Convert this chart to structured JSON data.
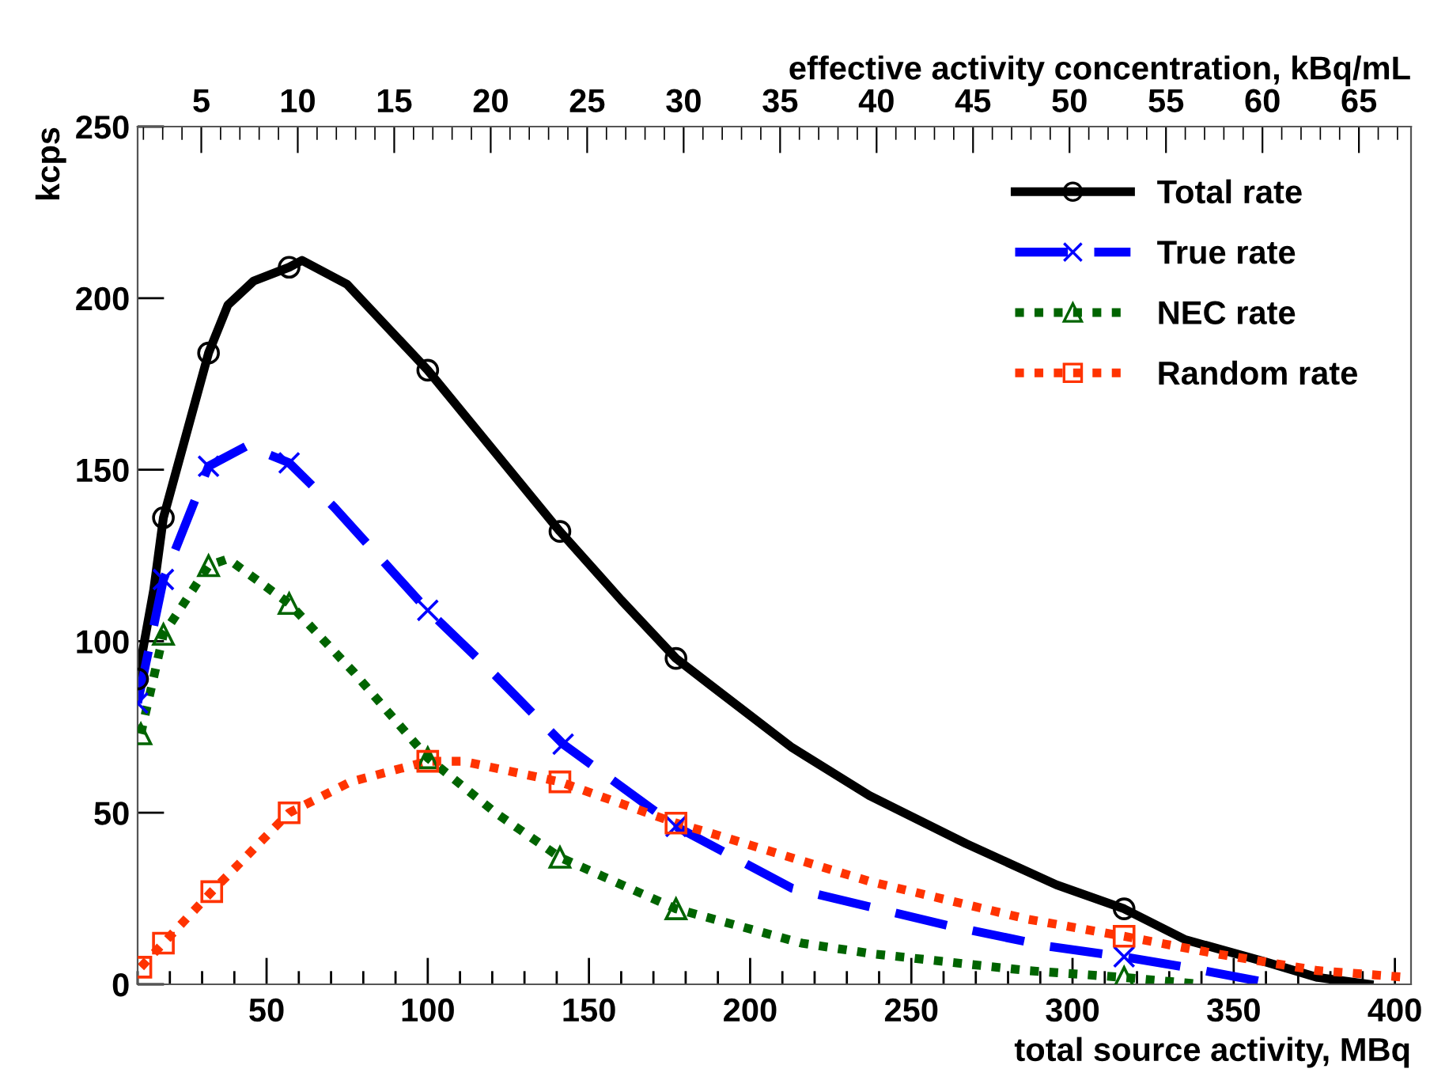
{
  "chart_data": {
    "type": "line",
    "xlabel": "total source activity, MBq",
    "ylabel": "kcps",
    "x2label": "effective activity concentration, kBq/mL",
    "xlim": [
      10,
      405
    ],
    "xticks": [
      50,
      100,
      150,
      200,
      250,
      300,
      350,
      400
    ],
    "ylim": [
      0,
      250
    ],
    "yticks": [
      0,
      50,
      100,
      150,
      200,
      250
    ],
    "x2lim": [
      1.7,
      67.7
    ],
    "x2ticks": [
      5,
      10,
      15,
      20,
      25,
      30,
      35,
      40,
      45,
      50,
      55,
      60,
      65
    ],
    "legend": "top right",
    "grid": false,
    "series": [
      {
        "type": "line",
        "name": "Total rate",
        "color": "#000000",
        "line_style": "solid",
        "x": [
          10,
          15,
          18,
          32,
          38,
          46,
          57,
          61,
          75,
          100,
          141,
          160,
          177,
          188,
          213,
          237,
          267,
          295,
          316,
          335,
          360,
          376,
          392
        ],
        "values": [
          89,
          115,
          136,
          184,
          198,
          205,
          209,
          211,
          204,
          179,
          132,
          112,
          95,
          87,
          69,
          55,
          41,
          29,
          22,
          13,
          6.5,
          2,
          0
        ]
      },
      {
        "type": "scatter",
        "color": "#000000",
        "marker": "circle",
        "x": [
          10,
          18,
          32,
          57,
          100,
          141,
          177,
          316
        ],
        "values": [
          89,
          136,
          184,
          209,
          179,
          132,
          95,
          22
        ]
      },
      {
        "type": "line",
        "name": "True rate",
        "color": "#0000ff",
        "line_style": "dashed",
        "x": [
          10,
          18,
          32,
          44,
          57,
          71,
          100,
          121,
          142,
          177,
          213,
          262,
          293,
          316,
          335,
          363
        ],
        "values": [
          82,
          118,
          151,
          157,
          152,
          139,
          109,
          90,
          70,
          46,
          28,
          17,
          11,
          8,
          5,
          0
        ]
      },
      {
        "type": "scatter",
        "color": "#0000ff",
        "marker": "cross",
        "x": [
          10,
          18,
          32,
          57,
          100,
          142,
          177,
          316
        ],
        "values": [
          82,
          118,
          151,
          152,
          109,
          70,
          46,
          8
        ]
      },
      {
        "type": "line",
        "name": "NEC rate",
        "color": "#006400",
        "line_style": "dotted",
        "x": [
          11,
          18,
          32,
          38,
          57,
          77,
          100,
          121,
          141,
          177,
          216,
          237,
          286,
          316,
          340
        ],
        "values": [
          73,
          102,
          122,
          124,
          111,
          91,
          66,
          50,
          37,
          22,
          12,
          9,
          4,
          2,
          0
        ]
      },
      {
        "type": "scatter",
        "color": "#006400",
        "marker": "triangle",
        "x": [
          11,
          18,
          32,
          57,
          100,
          141,
          177,
          316
        ],
        "values": [
          73,
          102,
          122,
          111,
          66,
          37,
          22,
          2
        ]
      },
      {
        "type": "line",
        "name": "Random rate",
        "color": "#ff3300",
        "line_style": "dotted",
        "x": [
          11,
          18,
          33,
          57,
          76,
          100,
          111,
          141,
          177,
          188,
          237,
          286,
          316,
          344,
          376,
          404
        ],
        "values": [
          5,
          12,
          27,
          50,
          59,
          65,
          65,
          59,
          47,
          44,
          30,
          19,
          14,
          9,
          4,
          2
        ]
      },
      {
        "type": "scatter",
        "color": "#ff3300",
        "marker": "square",
        "x": [
          11,
          18,
          33,
          57,
          100,
          141,
          177,
          316
        ],
        "values": [
          5,
          12,
          27,
          50,
          65,
          59,
          47,
          14
        ]
      }
    ]
  }
}
